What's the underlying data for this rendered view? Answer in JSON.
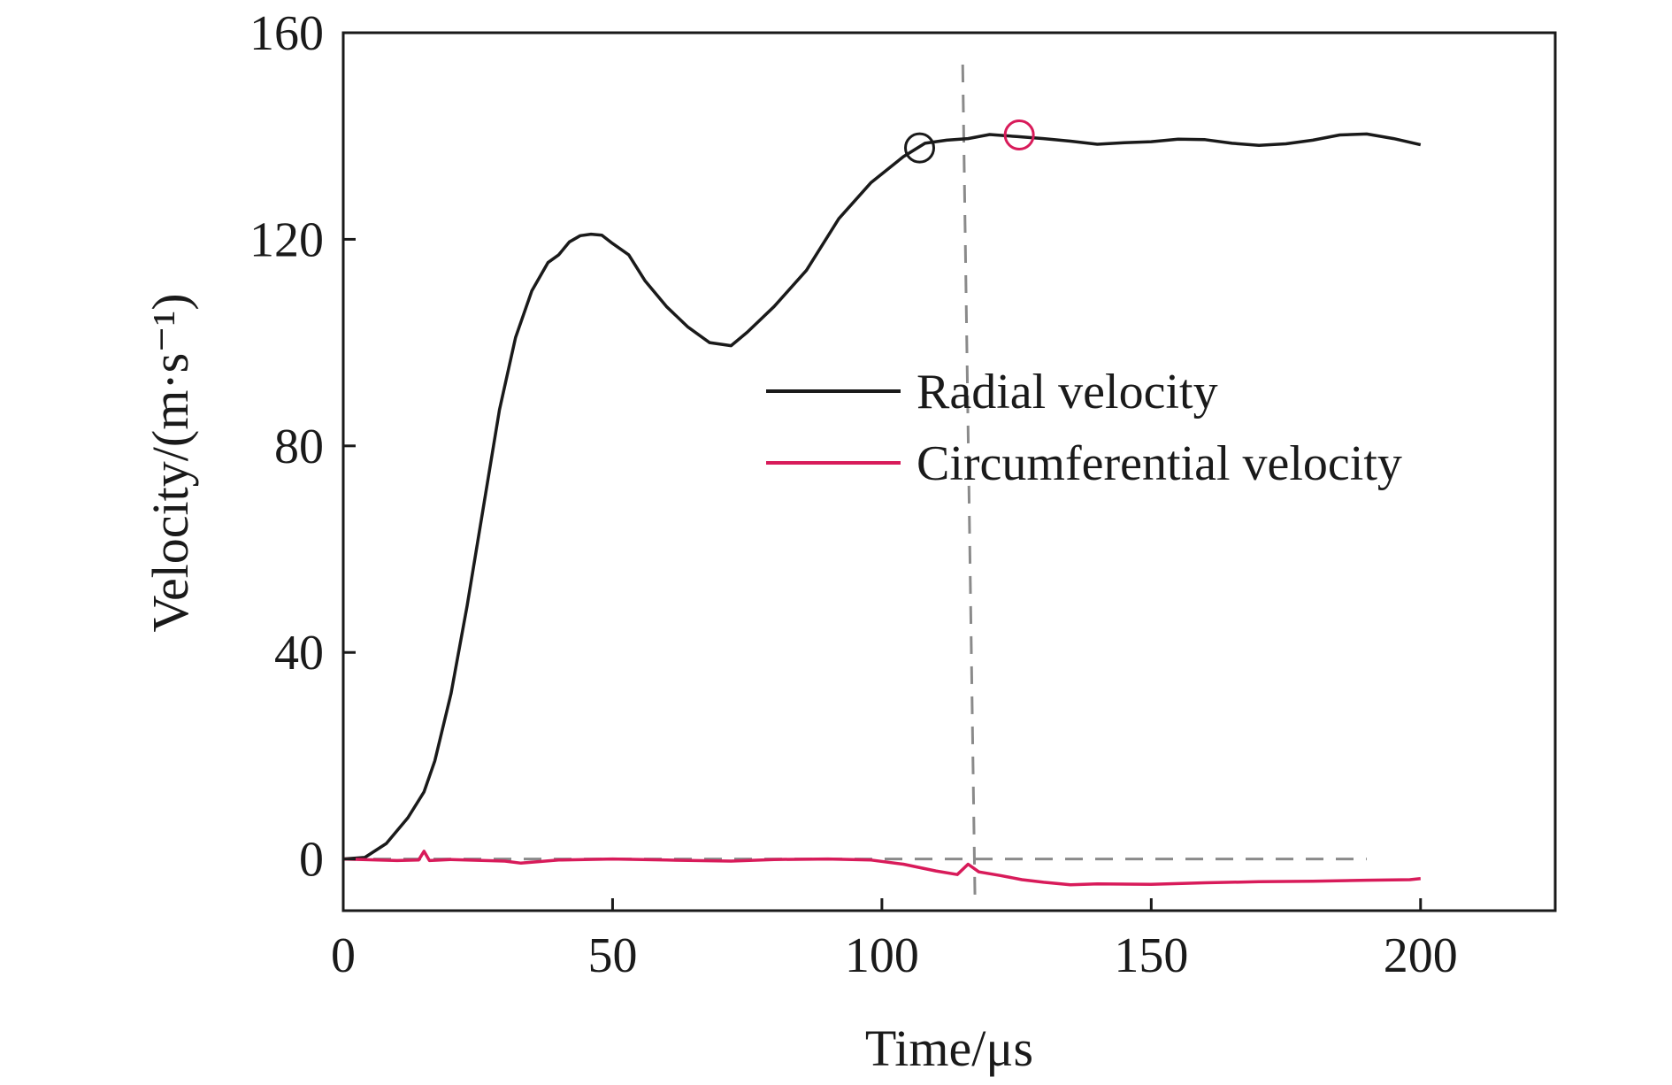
{
  "chart_data": {
    "type": "line",
    "title": "",
    "xlabel": "Time/μs",
    "ylabel": "Velocity/(m·s⁻¹)",
    "xlim": [
      0,
      225
    ],
    "ylim": [
      -10,
      160
    ],
    "x_ticks": [
      0,
      50,
      100,
      150,
      200
    ],
    "y_ticks": [
      0,
      40,
      80,
      120,
      160
    ],
    "x_tick_labels": [
      "0",
      "50",
      "100",
      "150",
      "200"
    ],
    "y_tick_labels": [
      "0",
      "40",
      "80",
      "120",
      "160"
    ],
    "grid": false,
    "legend_position": "center-right",
    "series": [
      {
        "name": "Radial velocity",
        "color": "#1a1a1a",
        "x": [
          0,
          4,
          8,
          12,
          15,
          17,
          20,
          23,
          26,
          29,
          32,
          35,
          38,
          40,
          42,
          44,
          46,
          48,
          50,
          53,
          56,
          60,
          64,
          68,
          72,
          75,
          80,
          86,
          92,
          98,
          104,
          108,
          112,
          116,
          120,
          125,
          130,
          135,
          140,
          145,
          150,
          155,
          160,
          165,
          170,
          175,
          180,
          185,
          190,
          195,
          200
        ],
        "y": [
          0,
          0.3,
          3,
          8,
          13,
          19,
          32,
          49,
          68,
          87,
          101,
          110,
          115.5,
          117,
          119.5,
          120.7,
          121,
          120.8,
          119.2,
          117,
          112,
          107,
          103,
          100,
          99.4,
          102,
          107,
          114,
          124,
          131,
          136,
          138.6,
          139.2,
          139.5,
          140.3,
          139.9,
          139.5,
          139,
          138.4,
          138.7,
          138.9,
          139.4,
          139.3,
          138.6,
          138.2,
          138.5,
          139.2,
          140.2,
          140.4,
          139.5,
          138.3
        ]
      },
      {
        "name": "Circumferential velocity",
        "color": "#d81b5a",
        "x": [
          0,
          10,
          14,
          15,
          16,
          20,
          30,
          33,
          40,
          50,
          60,
          72,
          80,
          90,
          98,
          104,
          110,
          114,
          116,
          118,
          122,
          126,
          130,
          135,
          140,
          150,
          160,
          170,
          180,
          190,
          198,
          200
        ],
        "y": [
          0,
          -0.3,
          -0.2,
          1.5,
          -0.3,
          -0.1,
          -0.4,
          -0.8,
          -0.2,
          0,
          -0.2,
          -0.4,
          -0.1,
          0,
          -0.2,
          -1,
          -2.3,
          -3,
          -1,
          -2.5,
          -3.2,
          -4,
          -4.5,
          -5,
          -4.8,
          -4.9,
          -4.6,
          -4.4,
          -4.3,
          -4.1,
          -4.0,
          -3.8
        ]
      }
    ],
    "annotations": {
      "vertical_reference_x": 115,
      "horizontal_reference_y": 0,
      "horizontal_reference_xlim": [
        0,
        190
      ],
      "markers": [
        {
          "x": 107,
          "y": 137.7,
          "color": "#1a1a1a",
          "shape": "open-circle"
        },
        {
          "x": 125.5,
          "y": 140.2,
          "color": "#d81b5a",
          "shape": "open-circle"
        }
      ]
    }
  }
}
